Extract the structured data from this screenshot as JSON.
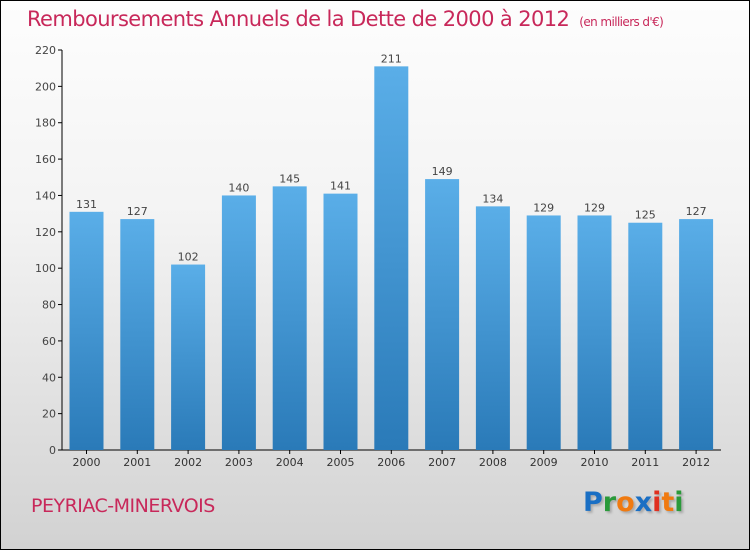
{
  "chart_data": {
    "type": "bar",
    "title": "Remboursements Annuels de la Dette de 2000 à 2012",
    "unit_label": "(en milliers d'€)",
    "categories": [
      "2000",
      "2001",
      "2002",
      "2003",
      "2004",
      "2005",
      "2006",
      "2007",
      "2008",
      "2009",
      "2010",
      "2011",
      "2012"
    ],
    "values": [
      131,
      127,
      102,
      140,
      145,
      141,
      211,
      149,
      134,
      129,
      129,
      125,
      127
    ],
    "yticks": [
      0,
      20,
      40,
      60,
      80,
      100,
      120,
      140,
      160,
      180,
      200,
      220
    ],
    "ylim": [
      0,
      220
    ],
    "xlabel": "",
    "ylabel": "",
    "bar_color_top": "#5aaee8",
    "bar_color_bottom": "#2a7ab8"
  },
  "city": "PEYRIAC-MINERVOIS",
  "logo": {
    "letters": [
      "P",
      "r",
      "o",
      "x",
      "i",
      "t",
      "i"
    ],
    "colors": [
      "#1a6fc4",
      "#2a9a3a",
      "#f07a10",
      "#1a6fc4",
      "#e03020",
      "#f07a10",
      "#2a9a3a"
    ]
  }
}
